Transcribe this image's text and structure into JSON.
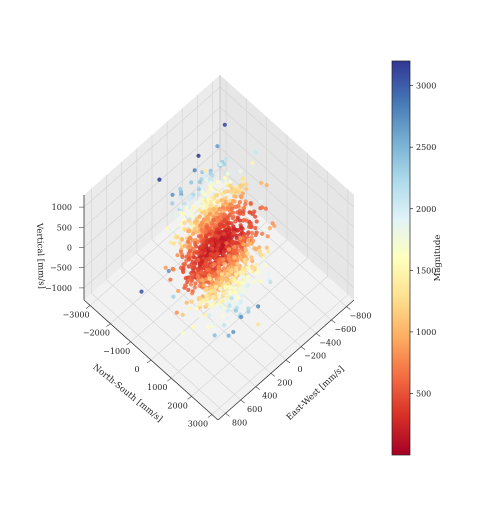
{
  "chart_data": {
    "type": "scatter",
    "projection": "3d",
    "title": "",
    "xlabel": "East-West [mm/s]",
    "ylabel": "North-South [mm/s]",
    "zlabel": "Vertical [mm/s]",
    "xlim": [
      -900,
      900
    ],
    "ylim": [
      -3300,
      3300
    ],
    "zlim": [
      -1300,
      1300
    ],
    "xticks": [
      -800,
      -600,
      -400,
      -200,
      0,
      200,
      400,
      600,
      800
    ],
    "yticks": [
      -3000,
      -2000,
      -1000,
      0,
      1000,
      2000,
      3000
    ],
    "zticks": [
      -1000,
      -500,
      0,
      500,
      1000
    ],
    "xtick_labels": [
      "−800",
      "−600",
      "−400",
      "−200",
      "0",
      "200",
      "400",
      "600",
      "800"
    ],
    "ytick_labels": [
      "−3000",
      "−2000",
      "−1000",
      "0",
      "1000",
      "2000",
      "3000"
    ],
    "ztick_labels": [
      "−1000",
      "−500",
      "0",
      "500",
      "1000"
    ],
    "grid": true,
    "colorbar": {
      "label": "Magnitude",
      "range": [
        0,
        3200
      ],
      "ticks": [
        500,
        1000,
        1500,
        2000,
        2500,
        3000
      ],
      "colormap": "RdYlBu",
      "colors": [
        "#a50026",
        "#d73027",
        "#f46d43",
        "#fdae61",
        "#fee090",
        "#ffffbf",
        "#e0f3f8",
        "#abd9e9",
        "#74add1",
        "#4575b4",
        "#313695"
      ]
    },
    "cloud": {
      "count": 1400,
      "x_mean": 0,
      "y_mean": 0,
      "z_mean": 0,
      "x_std": 260,
      "y_std": 950,
      "z_std": 160,
      "xy_correlation": 0.55
    },
    "outliers": [
      {
        "x": 650,
        "y": -1400,
        "z": -650,
        "magnitude": 3050
      },
      {
        "x": 450,
        "y": -800,
        "z": -200,
        "magnitude": 2700
      },
      {
        "x": -150,
        "y": -1500,
        "z": 700,
        "magnitude": 2400
      },
      {
        "x": 550,
        "y": -200,
        "z": -400,
        "magnitude": 2300
      },
      {
        "x": -500,
        "y": 200,
        "z": 400,
        "magnitude": 1900
      },
      {
        "x": 200,
        "y": 1700,
        "z": -400,
        "magnitude": 1900
      },
      {
        "x": 100,
        "y": 2300,
        "z": -700,
        "magnitude": 1300
      },
      {
        "x": -300,
        "y": -1800,
        "z": 600,
        "magnitude": 1400
      },
      {
        "x": 350,
        "y": 1000,
        "z": -900,
        "magnitude": 1600
      }
    ]
  }
}
